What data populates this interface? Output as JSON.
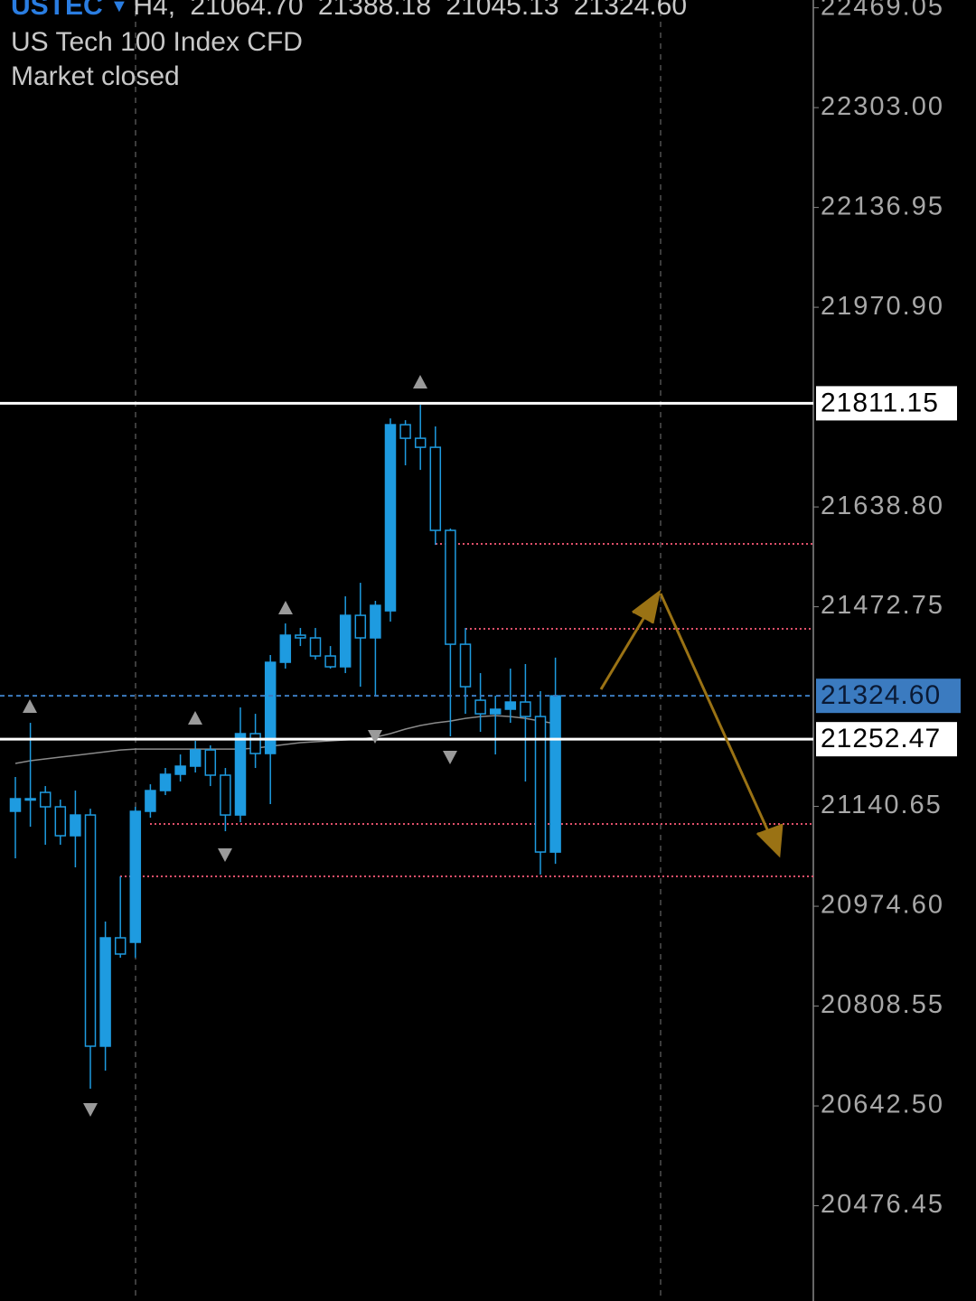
{
  "chart_data": {
    "type": "candlestick",
    "symbol": "USTEC",
    "timeframe": "H4,",
    "ohlc_labels": [
      "21064.70",
      "21388.18",
      "21045.13",
      "21324.60"
    ],
    "title": "US Tech 100 Index CFD",
    "status": "Market closed",
    "up_color": "#1e9be0",
    "down_color": "#1e9be0",
    "ma_color": "#8a8a8a",
    "hline_color": "#ffffff",
    "bid_color": "#3b7bc0",
    "level_color": "#e0506a",
    "ylim": [
      20318,
      22482
    ],
    "yticks": [
      {
        "value": 22469.05,
        "label": "22469.05"
      },
      {
        "value": 22303,
        "label": "22303.00"
      },
      {
        "value": 22136.95,
        "label": "22136.95"
      },
      {
        "value": 21970.9,
        "label": "21970.90"
      },
      {
        "value": 21638.8,
        "label": "21638.80"
      },
      {
        "value": 21472.75,
        "label": "21472.75"
      },
      {
        "value": 21140.65,
        "label": "21140.65"
      },
      {
        "value": 20974.6,
        "label": "20974.60"
      },
      {
        "value": 20808.55,
        "label": "20808.55"
      },
      {
        "value": 20642.5,
        "label": "20642.50"
      },
      {
        "value": 20476.45,
        "label": "20476.45"
      }
    ],
    "hlines": [
      21811.15,
      21252.47
    ],
    "levels": [
      21577.3,
      21436.0,
      21111.4,
      21024.3
    ],
    "candles": [
      {
        "open": 21132.5,
        "high": 21189.6,
        "low": 21054.3,
        "close": 21153.5
      },
      {
        "open": 21153.5,
        "high": 21279.7,
        "low": 21106.9,
        "close": 21152.0
      },
      {
        "open": 21164.0,
        "high": 21174.5,
        "low": 21076.9,
        "close": 21140.0
      },
      {
        "open": 21140.0,
        "high": 21152.0,
        "low": 21076.9,
        "close": 21091.9
      },
      {
        "open": 21091.9,
        "high": 21167.0,
        "low": 21039.3,
        "close": 21126.4
      },
      {
        "open": 21126.4,
        "high": 21136.9,
        "low": 20671.2,
        "close": 20741.8
      },
      {
        "open": 20741.8,
        "high": 20949.1,
        "low": 20701.2,
        "close": 20922.1
      },
      {
        "open": 20922.1,
        "high": 21024.3,
        "low": 20889.0,
        "close": 20895.1
      },
      {
        "open": 20914.6,
        "high": 21140.0,
        "low": 20889.0,
        "close": 21132.5
      },
      {
        "open": 21132.5,
        "high": 21177.5,
        "low": 21121.9,
        "close": 21167.0
      },
      {
        "open": 21167.0,
        "high": 21204.6,
        "low": 21159.5,
        "close": 21194.1
      },
      {
        "open": 21194.1,
        "high": 21227.1,
        "low": 21182.1,
        "close": 21207.6
      },
      {
        "open": 21207.6,
        "high": 21249.7,
        "low": 21197.1,
        "close": 21234.6
      },
      {
        "open": 21234.6,
        "high": 21242.2,
        "low": 21174.5,
        "close": 21192.6
      },
      {
        "open": 21192.6,
        "high": 21204.6,
        "low": 21099.4,
        "close": 21126.4
      },
      {
        "open": 21126.4,
        "high": 21305.3,
        "low": 21114.4,
        "close": 21261.7
      },
      {
        "open": 21261.7,
        "high": 21294.7,
        "low": 21204.6,
        "close": 21228.6
      },
      {
        "open": 21228.6,
        "high": 21392.4,
        "low": 21144.5,
        "close": 21380.4
      },
      {
        "open": 21380.4,
        "high": 21445.0,
        "low": 21369.9,
        "close": 21425.5
      },
      {
        "open": 21425.5,
        "high": 21437.5,
        "low": 21407.4,
        "close": 21421.0
      },
      {
        "open": 21421.0,
        "high": 21437.5,
        "low": 21384.9,
        "close": 21390.9
      },
      {
        "open": 21390.9,
        "high": 21407.4,
        "low": 21369.9,
        "close": 21372.9
      },
      {
        "open": 21372.9,
        "high": 21490.1,
        "low": 21362.4,
        "close": 21458.5
      },
      {
        "open": 21458.5,
        "high": 21512.6,
        "low": 21339.8,
        "close": 21421.0
      },
      {
        "open": 21421.0,
        "high": 21482.6,
        "low": 21324.8,
        "close": 21475.1
      },
      {
        "open": 21466.0,
        "high": 21786.1,
        "low": 21448.0,
        "close": 21775.6
      },
      {
        "open": 21775.6,
        "high": 21783.1,
        "low": 21708.0,
        "close": 21753.0
      },
      {
        "open": 21753.0,
        "high": 21808.6,
        "low": 21700.4,
        "close": 21738.0
      },
      {
        "open": 21738.0,
        "high": 21772.6,
        "low": 21575.7,
        "close": 21599.8
      },
      {
        "open": 21599.8,
        "high": 21602.8,
        "low": 21257.2,
        "close": 21410.4
      },
      {
        "open": 21410.4,
        "high": 21437.5,
        "low": 21294.7,
        "close": 21339.8
      },
      {
        "open": 21317.3,
        "high": 21362.4,
        "low": 21264.7,
        "close": 21294.7
      },
      {
        "open": 21294.7,
        "high": 21324.8,
        "low": 21227.1,
        "close": 21302.3
      },
      {
        "open": 21302.3,
        "high": 21369.9,
        "low": 21279.7,
        "close": 21314.3
      },
      {
        "open": 21314.3,
        "high": 21377.4,
        "low": 21182.1,
        "close": 21290.2
      },
      {
        "open": 21290.2,
        "high": 21332.3,
        "low": 21027.3,
        "close": 21064.8
      },
      {
        "open": 21064.7,
        "high": 21388.18,
        "low": 21045.13,
        "close": 21324.6
      }
    ],
    "ma": [
      21212.1,
      21216.6,
      21219.6,
      21222.6,
      21225.6,
      21228.6,
      21231.6,
      21234.6,
      21236.1,
      21236.1,
      21236.1,
      21236.1,
      21236.1,
      21236.1,
      21236.1,
      21236.1,
      21237.6,
      21240.7,
      21243.7,
      21246.7,
      21248.2,
      21249.7,
      21251.2,
      21252.7,
      21255.7,
      21261.7,
      21269.2,
      21275.2,
      21279.7,
      21282.7,
      21287.2,
      21290.2,
      21291.7,
      21290.2,
      21287.2,
      21282.7,
      21278.2
    ]
  }
}
